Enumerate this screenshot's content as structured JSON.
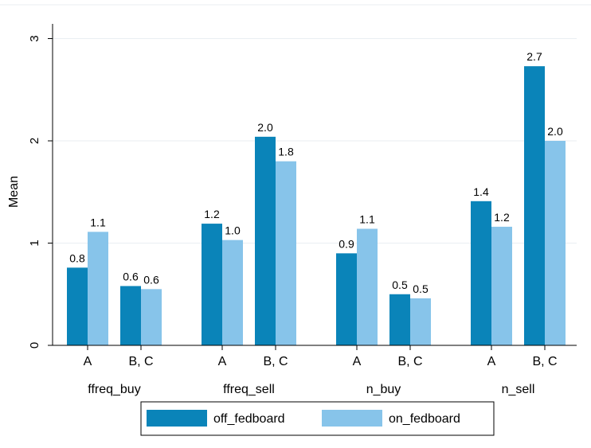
{
  "chart_data": {
    "type": "bar",
    "ylabel": "Mean",
    "ylim": [
      0,
      3.2
    ],
    "yticks": [
      0,
      1,
      2,
      3
    ],
    "grid": true,
    "groups": [
      {
        "label": "ffreq_buy",
        "categories": [
          "A",
          "B, C"
        ]
      },
      {
        "label": "ffreq_sell",
        "categories": [
          "A",
          "B, C"
        ]
      },
      {
        "label": "n_buy",
        "categories": [
          "A",
          "B, C"
        ]
      },
      {
        "label": "n_sell",
        "categories": [
          "A",
          "B, C"
        ]
      }
    ],
    "series": [
      {
        "name": "off_fedboard",
        "color": "#0a84b9",
        "values": [
          0.76,
          0.58,
          1.19,
          2.04,
          0.9,
          0.5,
          1.41,
          2.73
        ],
        "labels": [
          "0.8",
          "0.6",
          "1.2",
          "2.0",
          "0.9",
          "0.5",
          "1.4",
          "2.7"
        ]
      },
      {
        "name": "on_fedboard",
        "color": "#87c4ea",
        "values": [
          1.11,
          0.55,
          1.03,
          1.8,
          1.14,
          0.46,
          1.16,
          2.0
        ],
        "labels": [
          "1.1",
          "0.6",
          "1.0",
          "1.8",
          "1.1",
          "0.5",
          "1.2",
          "2.0"
        ]
      }
    ],
    "legend_position": "bottom"
  }
}
